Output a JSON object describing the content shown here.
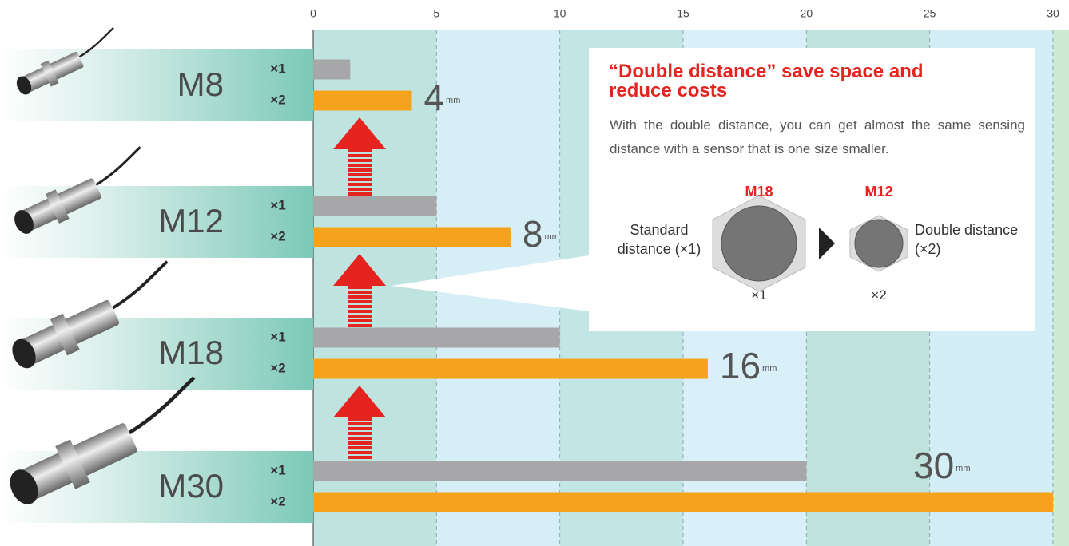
{
  "chart_data": {
    "type": "bar",
    "orientation": "horizontal",
    "categories": [
      "M8",
      "M12",
      "M18",
      "M30"
    ],
    "series": [
      {
        "name": "×1",
        "color": "#a7a7a9",
        "values": [
          1.5,
          5,
          10,
          20
        ]
      },
      {
        "name": "×2",
        "color": "#f5a31c",
        "values": [
          4,
          8,
          16,
          30
        ]
      }
    ],
    "xlim": [
      0,
      30
    ],
    "xticks": [
      0,
      5,
      10,
      15,
      20,
      25,
      30
    ],
    "grid": true,
    "unit": "mm"
  },
  "callout": {
    "title": "“Double distance” save space and reduce costs",
    "text": "With the double distance, you can get almost the same sensing distance with a sensor that is one size smaller.",
    "standard_label": "Standard distance (×1)",
    "double_label": "Double distance (×2)"
  }
}
